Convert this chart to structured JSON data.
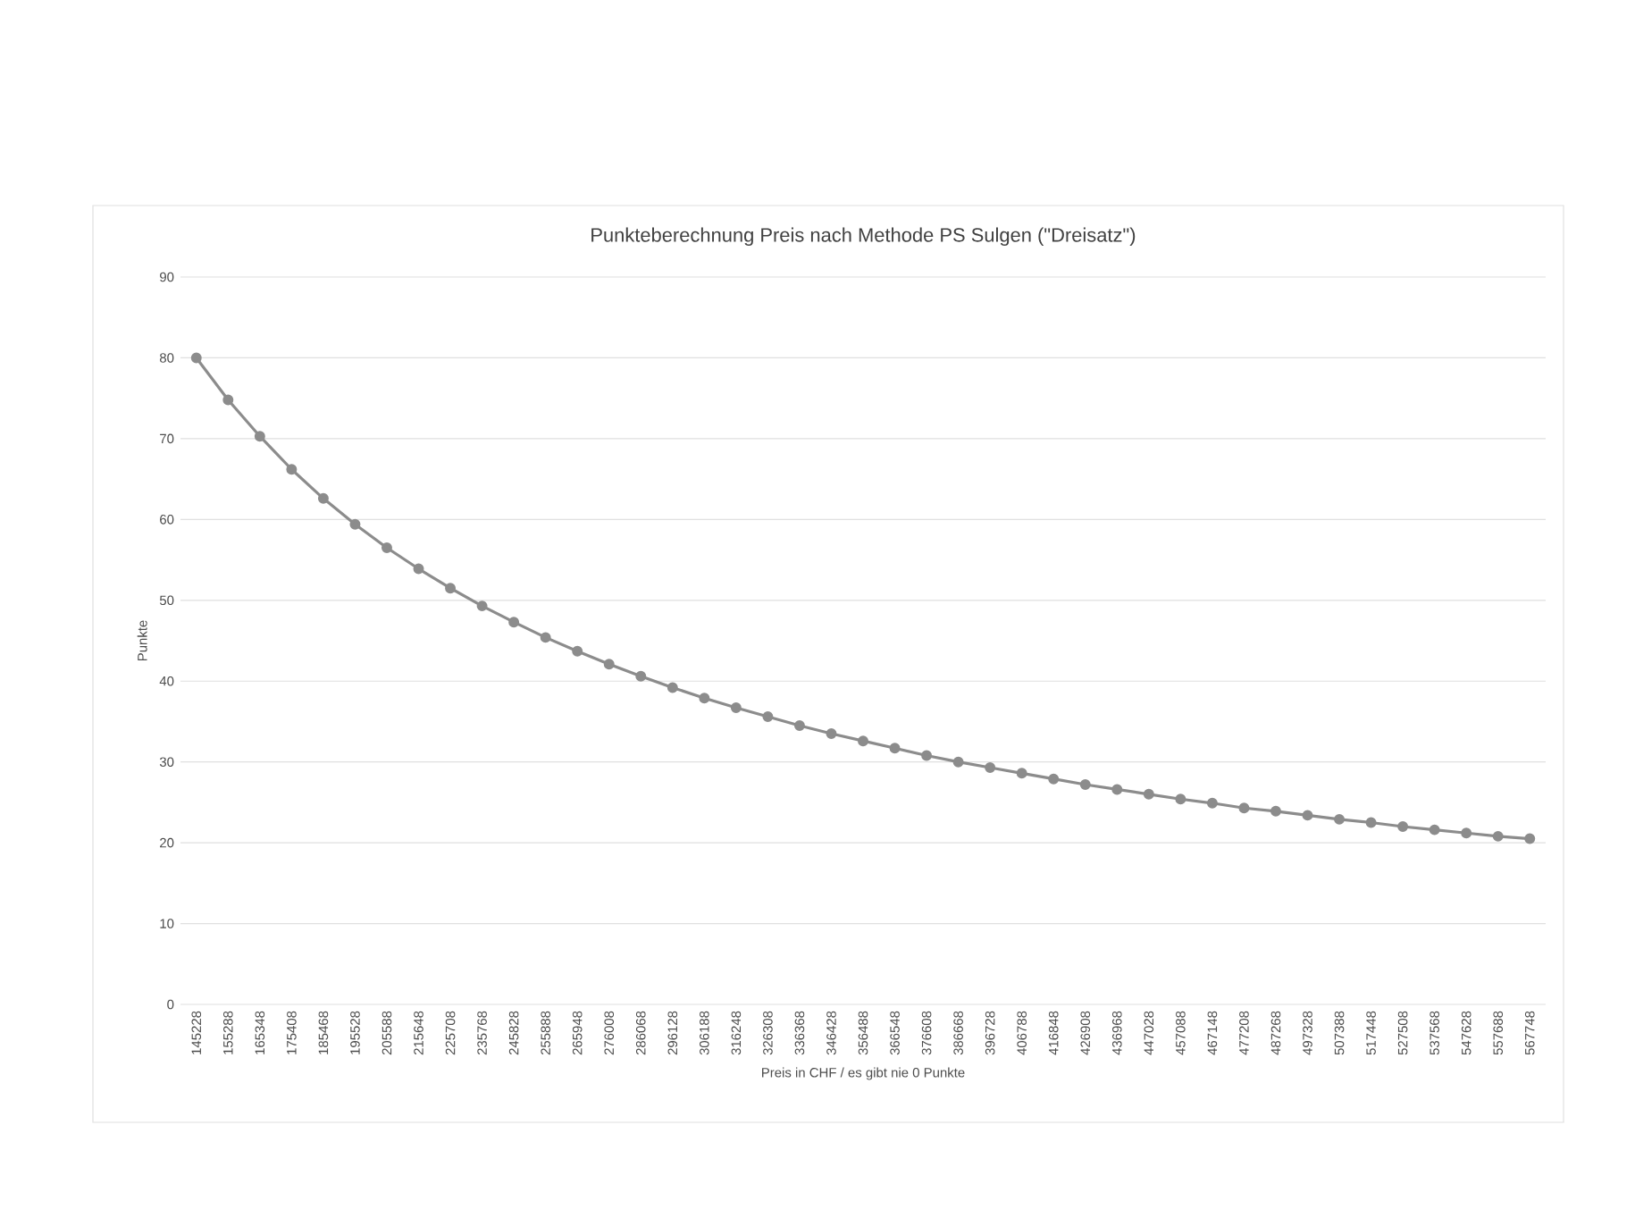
{
  "chart_data": {
    "type": "line",
    "title": "Punkteberechnung Preis nach Methode PS Sulgen (\"Dreisatz\")",
    "xlabel": "Preis in CHF / es gibt nie 0 Punkte",
    "ylabel": "Punkte",
    "categories": [
      "145228",
      "155288",
      "165348",
      "175408",
      "185468",
      "195528",
      "205588",
      "215648",
      "225708",
      "235768",
      "245828",
      "255888",
      "265948",
      "276008",
      "286068",
      "296128",
      "306188",
      "316248",
      "326308",
      "336368",
      "346428",
      "356488",
      "366548",
      "376608",
      "386668",
      "396728",
      "406788",
      "416848",
      "426908",
      "436968",
      "447028",
      "457088",
      "467148",
      "477208",
      "487268",
      "497328",
      "507388",
      "517448",
      "527508",
      "537568",
      "547628",
      "557688",
      "567748"
    ],
    "series": [
      {
        "color": "#8c8c8c",
        "values": [
          80,
          74.8,
          70.3,
          66.2,
          62.6,
          59.4,
          56.5,
          53.9,
          51.5,
          49.3,
          47.3,
          45.4,
          43.7,
          42.1,
          40.6,
          39.2,
          37.9,
          36.7,
          35.6,
          34.5,
          33.5,
          32.6,
          31.7,
          30.8,
          30.0,
          29.3,
          28.6,
          27.9,
          27.2,
          26.6,
          26.0,
          25.4,
          24.9,
          24.3,
          23.9,
          23.4,
          22.9,
          22.5,
          22.0,
          21.6,
          21.2,
          20.8,
          20.5
        ]
      }
    ],
    "ylim": [
      0,
      90
    ],
    "yticks": [
      0,
      10,
      20,
      30,
      40,
      50,
      60,
      70,
      80,
      90
    ],
    "grid": "y",
    "marker": "circle",
    "line_style": "solid"
  }
}
